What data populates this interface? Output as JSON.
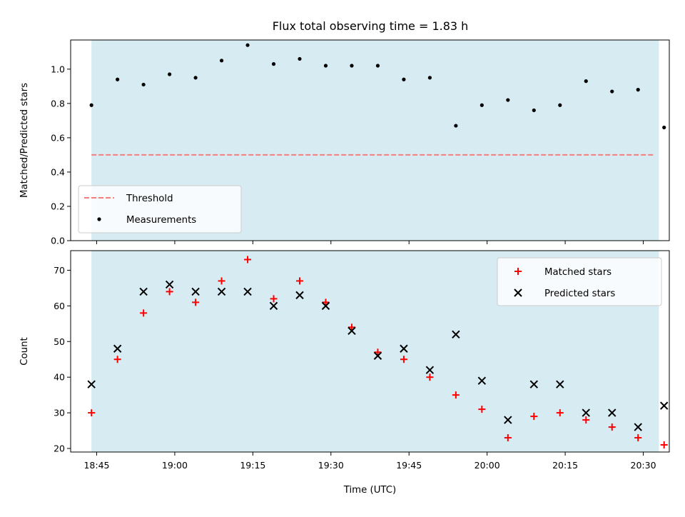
{
  "title": "Flux total observing time = 1.83 h",
  "colors": {
    "background": "#ffffff",
    "shade": "#add8e6",
    "threshold": "#f08080",
    "measurement": "#000000",
    "matched": "#ff0000",
    "predicted": "#000000"
  },
  "chart_data": [
    {
      "type": "scatter",
      "panel": "top",
      "ylabel": "Matched/Predicted stars",
      "xlabel": "",
      "ylim": [
        0,
        1.17
      ],
      "yticks": [
        "0.0",
        "0.2",
        "0.4",
        "0.6",
        "0.8",
        "1.0"
      ],
      "ytick_values": [
        0,
        0.2,
        0.4,
        0.6,
        0.8,
        1.0
      ],
      "shaded_span": [
        "18:44",
        "20:33"
      ],
      "legend_position": "lower-left",
      "legend": [
        "Threshold",
        "Measurements"
      ],
      "threshold": {
        "name": "Threshold",
        "y": 0.5,
        "x_range": [
          "18:44",
          "20:32"
        ],
        "style": "dashed"
      },
      "series": [
        {
          "name": "Measurements",
          "marker": "dot",
          "x": [
            "18:44",
            "18:49",
            "18:54",
            "18:59",
            "19:04",
            "19:09",
            "19:14",
            "19:19",
            "19:24",
            "19:29",
            "19:34",
            "19:39",
            "19:44",
            "19:49",
            "19:54",
            "19:59",
            "20:04",
            "20:09",
            "20:14",
            "20:19",
            "20:24",
            "20:29",
            "20:34"
          ],
          "y": [
            0.79,
            0.94,
            0.91,
            0.97,
            0.95,
            1.05,
            1.14,
            1.03,
            1.06,
            1.02,
            1.02,
            1.02,
            0.94,
            0.95,
            0.67,
            0.79,
            0.82,
            0.76,
            0.79,
            0.93,
            0.87,
            0.88,
            0.66
          ]
        }
      ]
    },
    {
      "type": "scatter",
      "panel": "bottom",
      "ylabel": "Count",
      "xlabel": "Time (UTC)",
      "ylim": [
        19,
        75.5
      ],
      "yticks": [
        "20",
        "30",
        "40",
        "50",
        "60",
        "70"
      ],
      "ytick_values": [
        20,
        30,
        40,
        50,
        60,
        70
      ],
      "xticks": [
        "18:45",
        "19:00",
        "19:15",
        "19:30",
        "19:45",
        "20:00",
        "20:15",
        "20:30"
      ],
      "xlim": [
        "18:40",
        "20:35"
      ],
      "shaded_span": [
        "18:44",
        "20:33"
      ],
      "legend_position": "upper-right",
      "legend": [
        "Matched stars",
        "Predicted stars"
      ],
      "series": [
        {
          "name": "Matched stars",
          "marker": "+",
          "x": [
            "18:44",
            "18:49",
            "18:54",
            "18:59",
            "19:04",
            "19:09",
            "19:14",
            "19:19",
            "19:24",
            "19:29",
            "19:34",
            "19:39",
            "19:44",
            "19:49",
            "19:54",
            "19:59",
            "20:04",
            "20:09",
            "20:14",
            "20:19",
            "20:24",
            "20:29",
            "20:34"
          ],
          "y": [
            30,
            45,
            58,
            64,
            61,
            67,
            73,
            62,
            67,
            61,
            54,
            47,
            45,
            40,
            35,
            31,
            23,
            29,
            30,
            28,
            26,
            23,
            21
          ]
        },
        {
          "name": "Predicted stars",
          "marker": "x",
          "x": [
            "18:44",
            "18:49",
            "18:54",
            "18:59",
            "19:04",
            "19:09",
            "19:14",
            "19:19",
            "19:24",
            "19:29",
            "19:34",
            "19:39",
            "19:44",
            "19:49",
            "19:54",
            "19:59",
            "20:04",
            "20:09",
            "20:14",
            "20:19",
            "20:24",
            "20:29",
            "20:34"
          ],
          "y": [
            38,
            48,
            64,
            66,
            64,
            64,
            64,
            60,
            63,
            60,
            53,
            46,
            48,
            42,
            52,
            39,
            28,
            38,
            38,
            30,
            30,
            26,
            32
          ]
        }
      ]
    }
  ]
}
